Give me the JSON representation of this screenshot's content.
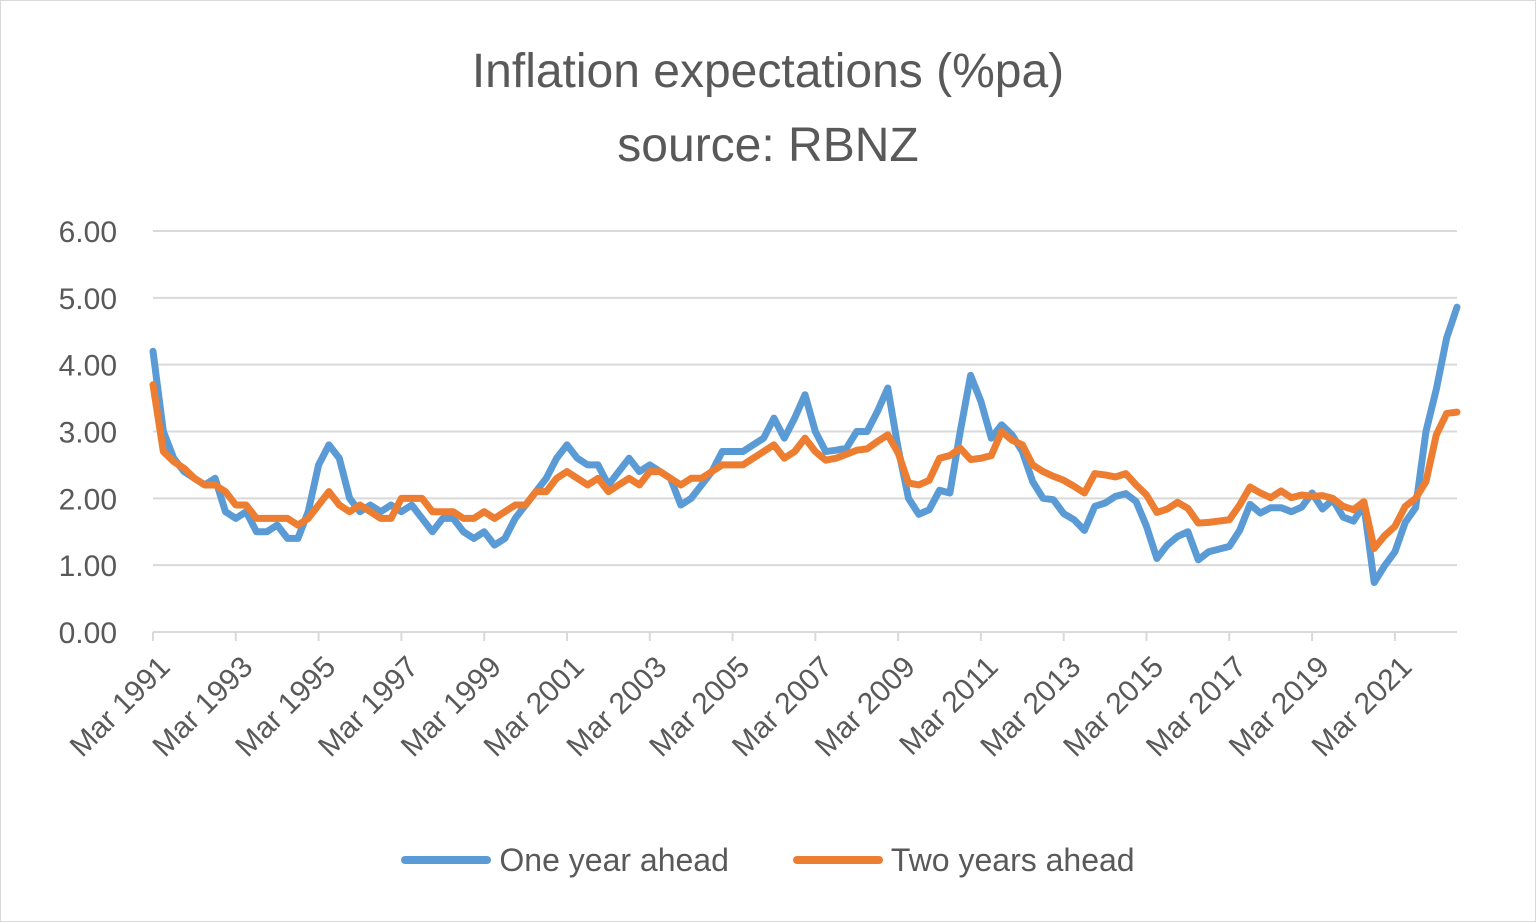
{
  "chart_data": {
    "type": "line",
    "title": "Inflation expectations (%pa)",
    "subtitle": "source: RBNZ",
    "xlabel": "",
    "ylabel": "",
    "ylim": [
      0,
      6
    ],
    "yticks": [
      "0.00",
      "1.00",
      "2.00",
      "3.00",
      "4.00",
      "5.00",
      "6.00"
    ],
    "x_start": "Mar 1991",
    "x_frequency": "quarterly",
    "x_tick_labels": [
      "Mar 1991",
      "Mar 1993",
      "Mar 1995",
      "Mar 1997",
      "Mar 1999",
      "Mar 2001",
      "Mar 2003",
      "Mar 2005",
      "Mar 2007",
      "Mar 2009",
      "Mar 2011",
      "Mar 2013",
      "Mar 2015",
      "Mar 2017",
      "Mar 2019",
      "Mar 2021"
    ],
    "grid": "horizontal",
    "legend_position": "bottom",
    "series": [
      {
        "name": "One year ahead",
        "color": "#5b9bd5",
        "values": [
          4.2,
          3.0,
          2.6,
          2.4,
          2.3,
          2.2,
          2.3,
          1.8,
          1.7,
          1.8,
          1.5,
          1.5,
          1.6,
          1.4,
          1.4,
          1.8,
          2.5,
          2.8,
          2.6,
          2.0,
          1.8,
          1.9,
          1.8,
          1.9,
          1.8,
          1.9,
          1.7,
          1.5,
          1.7,
          1.7,
          1.5,
          1.4,
          1.5,
          1.3,
          1.4,
          1.7,
          1.9,
          2.1,
          2.3,
          2.6,
          2.8,
          2.6,
          2.5,
          2.5,
          2.2,
          2.4,
          2.6,
          2.4,
          2.5,
          2.4,
          2.3,
          1.9,
          2.0,
          2.2,
          2.4,
          2.7,
          2.7,
          2.7,
          2.8,
          2.9,
          3.2,
          2.9,
          3.2,
          3.55,
          3.0,
          2.7,
          2.72,
          2.75,
          3.0,
          3.0,
          3.3,
          3.65,
          2.75,
          2.0,
          1.76,
          1.83,
          2.12,
          2.08,
          3.0,
          3.84,
          3.45,
          2.9,
          3.1,
          2.95,
          2.7,
          2.25,
          2.0,
          1.98,
          1.77,
          1.68,
          1.52,
          1.88,
          1.93,
          2.03,
          2.07,
          1.95,
          1.58,
          1.1,
          1.3,
          1.43,
          1.5,
          1.08,
          1.2,
          1.24,
          1.28,
          1.52,
          1.91,
          1.78,
          1.86,
          1.86,
          1.8,
          1.87,
          2.08,
          1.84,
          1.98,
          1.72,
          1.66,
          1.9,
          0.74,
          0.99,
          1.2,
          1.64,
          1.86,
          3.0,
          3.63,
          4.4,
          4.86
        ]
      },
      {
        "name": "Two years ahead",
        "color": "#ed7d31",
        "values": [
          3.7,
          2.7,
          2.55,
          2.45,
          2.3,
          2.2,
          2.2,
          2.1,
          1.9,
          1.9,
          1.7,
          1.7,
          1.7,
          1.7,
          1.6,
          1.7,
          1.9,
          2.1,
          1.9,
          1.8,
          1.9,
          1.8,
          1.7,
          1.7,
          2.0,
          2.0,
          2.0,
          1.8,
          1.8,
          1.8,
          1.7,
          1.7,
          1.8,
          1.7,
          1.8,
          1.9,
          1.9,
          2.1,
          2.1,
          2.3,
          2.4,
          2.3,
          2.2,
          2.3,
          2.1,
          2.2,
          2.3,
          2.2,
          2.4,
          2.4,
          2.3,
          2.2,
          2.3,
          2.3,
          2.4,
          2.5,
          2.5,
          2.5,
          2.6,
          2.7,
          2.8,
          2.6,
          2.7,
          2.9,
          2.7,
          2.57,
          2.6,
          2.66,
          2.72,
          2.74,
          2.85,
          2.95,
          2.68,
          2.23,
          2.2,
          2.27,
          2.6,
          2.64,
          2.75,
          2.58,
          2.6,
          2.64,
          3.0,
          2.87,
          2.8,
          2.5,
          2.4,
          2.33,
          2.27,
          2.18,
          2.08,
          2.37,
          2.35,
          2.32,
          2.37,
          2.2,
          2.05,
          1.79,
          1.84,
          1.94,
          1.85,
          1.63,
          1.64,
          1.66,
          1.68,
          1.9,
          2.17,
          2.08,
          2.01,
          2.11,
          2.01,
          2.05,
          2.03,
          2.04,
          2.0,
          1.88,
          1.83,
          1.95,
          1.25,
          1.44,
          1.58,
          1.88,
          2.0,
          2.25,
          2.95,
          3.27,
          3.29
        ]
      }
    ]
  }
}
